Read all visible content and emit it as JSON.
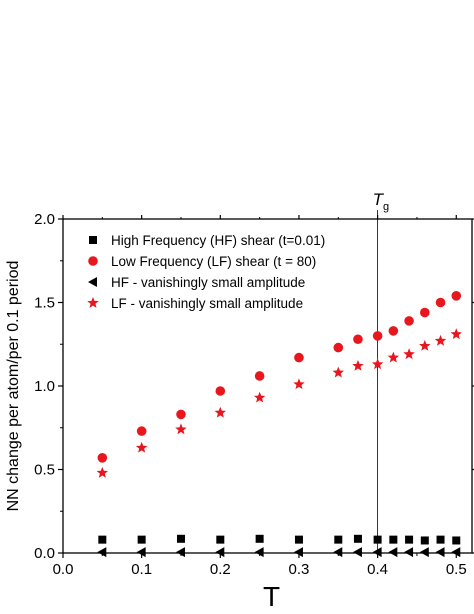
{
  "chart_data": {
    "type": "scatter",
    "xlabel": "T",
    "ylabel": "NN change per atom/per 0.1 period",
    "xlim": [
      0.0,
      0.52
    ],
    "ylim": [
      0.0,
      2.0
    ],
    "x_ticks": [
      "0.0",
      "0.1",
      "0.2",
      "0.3",
      "0.4",
      "0.5"
    ],
    "y_ticks": [
      "0.0",
      "0.5",
      "1.0",
      "1.5",
      "2.0"
    ],
    "grid": false,
    "legend_position": "top-left",
    "annotation": {
      "label": "T",
      "subscript": "g",
      "x": 0.4
    },
    "series": [
      {
        "name": "High Frequency (HF) shear (t=0.01)",
        "marker": "square",
        "color": "#000000",
        "x": [
          0.05,
          0.1,
          0.15,
          0.2,
          0.25,
          0.3,
          0.35,
          0.375,
          0.4,
          0.42,
          0.44,
          0.46,
          0.48,
          0.5
        ],
        "y": [
          0.08,
          0.08,
          0.085,
          0.08,
          0.085,
          0.08,
          0.08,
          0.085,
          0.08,
          0.08,
          0.08,
          0.075,
          0.08,
          0.075
        ]
      },
      {
        "name": "Low Frequency (LF) shear (t = 80)",
        "marker": "circle",
        "color": "#e8171e",
        "x": [
          0.05,
          0.1,
          0.15,
          0.2,
          0.25,
          0.3,
          0.35,
          0.375,
          0.4,
          0.42,
          0.44,
          0.46,
          0.48,
          0.5
        ],
        "y": [
          0.57,
          0.73,
          0.83,
          0.97,
          1.06,
          1.17,
          1.23,
          1.28,
          1.3,
          1.33,
          1.39,
          1.44,
          1.5,
          1.54
        ]
      },
      {
        "name": "HF - vanishingly small amplitude",
        "marker": "triangle-left",
        "color": "#000000",
        "x": [
          0.05,
          0.1,
          0.15,
          0.2,
          0.25,
          0.3,
          0.35,
          0.375,
          0.4,
          0.42,
          0.44,
          0.46,
          0.48,
          0.5
        ],
        "y": [
          0.005,
          0.005,
          0.005,
          0.005,
          0.005,
          0.005,
          0.005,
          0.005,
          0.005,
          0.005,
          0.005,
          0.005,
          0.005,
          0.005
        ]
      },
      {
        "name": "LF - vanishingly small amplitude",
        "marker": "star",
        "color": "#e8171e",
        "x": [
          0.05,
          0.1,
          0.15,
          0.2,
          0.25,
          0.3,
          0.35,
          0.375,
          0.4,
          0.42,
          0.44,
          0.46,
          0.48,
          0.5
        ],
        "y": [
          0.48,
          0.63,
          0.74,
          0.84,
          0.93,
          1.01,
          1.08,
          1.12,
          1.13,
          1.17,
          1.19,
          1.24,
          1.27,
          1.31
        ]
      }
    ]
  }
}
